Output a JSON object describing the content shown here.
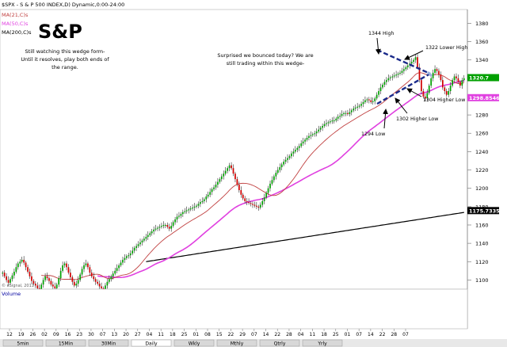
{
  "header": {
    "symbol_line": "$SPX - S & P 500 INDEX,D) Dynamic,0:00-24:00",
    "ma21": "MA(21,C)s",
    "ma50": "MA(50,C)s",
    "ma200": "MA(200,C)s",
    "title": "S&P"
  },
  "annotations": {
    "note_left": [
      "Still watching this wedge form-",
      "Until it resolves, play both ends of",
      "the range."
    ],
    "note_mid": [
      "Surprised we bounced today? We are",
      "still trading within this wedge-"
    ],
    "label_1344": "1344 High",
    "label_1322": "1322 Lower High",
    "label_1304": "1304 Higher Low",
    "label_1302": "1302 Higher Low",
    "label_1294": "1294 Low",
    "copyright": "© eSignal, 2011"
  },
  "footer": {
    "volume_label": "Volume",
    "date_labels": [
      "12",
      "19",
      "26",
      "02",
      "09",
      "16",
      "23",
      "30",
      "07",
      "13",
      "20",
      "27",
      "04",
      "11",
      "18",
      "25",
      "01",
      "08",
      "15",
      "22",
      "29",
      "07",
      "14",
      "22",
      "28",
      "04",
      "11",
      "18",
      "25",
      "01",
      "07",
      "14",
      "22",
      "28",
      "07"
    ],
    "tabs": [
      "5min",
      "15Min",
      "30Min",
      "Daily",
      "Wkly",
      "Mthly",
      "Qtrly",
      "Yrly"
    ]
  },
  "colors": {
    "background": "#ffffff",
    "up": "#00a000",
    "down": "#d00000",
    "ma21": "#c04040",
    "ma50": "#e040e0",
    "ma200": "#000000",
    "wedge": "#1a2a8a",
    "arrow": "#000000"
  },
  "chart_data": {
    "type": "candlestick",
    "ylim": [
      1090,
      1395
    ],
    "y_ticks": [
      1380,
      1360,
      1340,
      1320,
      1300,
      1280,
      1260,
      1240,
      1220,
      1200,
      1180,
      1160,
      1140,
      1120,
      1100
    ],
    "price_tags": [
      {
        "label": "1320.7",
        "value": 1320.7,
        "color": "#00a000"
      },
      {
        "label": "1298.8546",
        "value": 1298.85,
        "color": "#e040e0"
      },
      {
        "label": "1175.7335",
        "value": 1175.7,
        "color": "#000000"
      }
    ],
    "n_bars": 245,
    "close": [
      1108,
      1104,
      1100,
      1097,
      1101,
      1105,
      1109,
      1114,
      1118,
      1120,
      1122,
      1119,
      1114,
      1109,
      1104,
      1099,
      1096,
      1094,
      1091,
      1090,
      1095,
      1100,
      1104,
      1102,
      1099,
      1095,
      1093,
      1091,
      1095,
      1102,
      1110,
      1116,
      1118,
      1114,
      1108,
      1103,
      1098,
      1094,
      1096,
      1100,
      1106,
      1112,
      1116,
      1118,
      1114,
      1108,
      1104,
      1101,
      1098,
      1096,
      1093,
      1091,
      1090,
      1094,
      1098,
      1101,
      1104,
      1107,
      1110,
      1113,
      1116,
      1119,
      1122,
      1124,
      1126,
      1127,
      1129,
      1132,
      1135,
      1137,
      1139,
      1141,
      1143,
      1145,
      1147,
      1149,
      1151,
      1153,
      1155,
      1156,
      1157,
      1158,
      1159,
      1160,
      1160,
      1158,
      1156,
      1159,
      1163,
      1166,
      1169,
      1170,
      1172,
      1174,
      1175,
      1176,
      1177,
      1178,
      1179,
      1180,
      1181,
      1183,
      1185,
      1186,
      1188,
      1191,
      1193,
      1196,
      1199,
      1201,
      1204,
      1207,
      1210,
      1213,
      1216,
      1219,
      1222,
      1225,
      1222,
      1216,
      1210,
      1204,
      1198,
      1193,
      1189,
      1186,
      1185,
      1184,
      1183,
      1182,
      1181,
      1180,
      1179,
      1182,
      1186,
      1190,
      1195,
      1200,
      1205,
      1209,
      1213,
      1217,
      1220,
      1223,
      1226,
      1229,
      1231,
      1233,
      1235,
      1238,
      1240,
      1242,
      1244,
      1246,
      1249,
      1251,
      1253,
      1255,
      1257,
      1258,
      1259,
      1260,
      1262,
      1264,
      1266,
      1268,
      1270,
      1271,
      1272,
      1273,
      1274,
      1274,
      1276,
      1278,
      1279,
      1281,
      1282,
      1282,
      1281,
      1283,
      1285,
      1287,
      1288,
      1289,
      1290,
      1292,
      1294,
      1296,
      1297,
      1296,
      1294,
      1295,
      1298,
      1302,
      1306,
      1310,
      1313,
      1316,
      1318,
      1320,
      1321,
      1322,
      1323,
      1324,
      1325,
      1326,
      1328,
      1330,
      1332,
      1334,
      1336,
      1338,
      1340,
      1343,
      1332,
      1318,
      1306,
      1300,
      1298,
      1304,
      1312,
      1320,
      1326,
      1330,
      1328,
      1324,
      1318,
      1310,
      1306,
      1302,
      1306,
      1312,
      1318,
      1322,
      1320,
      1316,
      1312,
      1318,
      1320
    ],
    "ma200": {
      "start_index": 74,
      "start_value": 1120,
      "end_index": 245,
      "end_value": 1176
    }
  }
}
